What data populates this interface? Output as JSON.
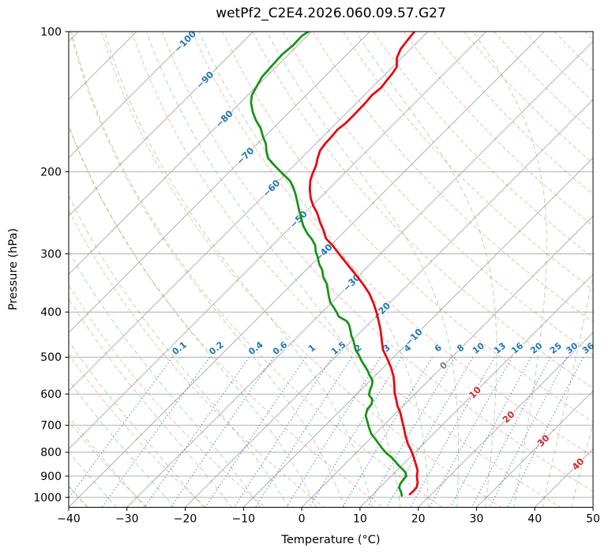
{
  "title": "wetPf2_C2E4.2026.060.09.57.G27",
  "chart_data": {
    "type": "line",
    "subtype": "skew-t-log-p-sounding",
    "title": "wetPf2_C2E4.2026.060.09.57.G27",
    "xlabel": "Temperature (°C)",
    "ylabel": "Pressure (hPa)",
    "x_ticks": [
      -40,
      -30,
      -20,
      -10,
      0,
      10,
      20,
      30,
      40,
      50
    ],
    "y_ticks": [
      100,
      200,
      300,
      400,
      500,
      600,
      700,
      800,
      900,
      1000
    ],
    "xlim_at_bottom": [
      -40,
      50
    ],
    "pressure_range": [
      100,
      1050
    ],
    "grid": true,
    "skew_deg": 45,
    "isotherms": {
      "t_start": -130,
      "t_end": 50,
      "step": 10,
      "line_color": "#b0b0b0",
      "labels": [
        {
          "t": -100,
          "p": 105
        },
        {
          "t": -90,
          "p": 127
        },
        {
          "t": -80,
          "p": 154
        },
        {
          "t": -70,
          "p": 185
        },
        {
          "t": -60,
          "p": 217
        },
        {
          "t": -50,
          "p": 253
        },
        {
          "t": -40,
          "p": 298
        },
        {
          "t": -30,
          "p": 346
        },
        {
          "t": -20,
          "p": 398
        },
        {
          "t": -10,
          "p": 453
        },
        {
          "t": 0,
          "p": 521
        },
        {
          "t": 10,
          "p": 595
        },
        {
          "t": 20,
          "p": 672
        },
        {
          "t": 30,
          "p": 755
        },
        {
          "t": 40,
          "p": 848
        }
      ],
      "label_color_negative": "#1f77b4",
      "label_color_zero": "#7f7f7f",
      "label_color_positive": "#d62728"
    },
    "dry_adiabats": {
      "theta_start_c": -40,
      "theta_end_c": 200,
      "step_c": 10,
      "color": "rgba(232,105,80,0.45)"
    },
    "moist_adiabats": {
      "t0_start_c": -40,
      "t0_end_c": 70,
      "step_c": 5,
      "color": "rgba(70,165,75,0.42)"
    },
    "mixing_ratio_lines": {
      "values_g_kg": [
        0.1,
        0.2,
        0.4,
        0.6,
        1,
        1.5,
        2,
        3,
        4,
        6,
        8,
        10,
        13,
        16,
        20,
        25,
        30,
        36
      ],
      "top_pressure": 500,
      "label_pressure": 478,
      "line_color": "rgba(36,118,189,0.75)",
      "label_color": "#1f77b4"
    },
    "series": [
      {
        "name": "temperature",
        "color": "#e8000b",
        "points_p_t": [
          [
            100,
            -62.3
          ],
          [
            102,
            -62.2
          ],
          [
            106,
            -61.9
          ],
          [
            109,
            -61.7
          ],
          [
            114,
            -60.8
          ],
          [
            119,
            -59.3
          ],
          [
            123,
            -58.9
          ],
          [
            127,
            -58.7
          ],
          [
            132,
            -58.4
          ],
          [
            137,
            -58.7
          ],
          [
            142,
            -58.5
          ],
          [
            152,
            -58.4
          ],
          [
            158,
            -58.4
          ],
          [
            162,
            -58.7
          ],
          [
            169,
            -58.5
          ],
          [
            174,
            -58.4
          ],
          [
            180,
            -58.1
          ],
          [
            187,
            -57.2
          ],
          [
            194,
            -56.2
          ],
          [
            202,
            -55.4
          ],
          [
            209,
            -54.6
          ],
          [
            218,
            -53.2
          ],
          [
            228,
            -51.5
          ],
          [
            237,
            -49.7
          ],
          [
            245,
            -47.9
          ],
          [
            256,
            -45.9
          ],
          [
            266,
            -44.0
          ],
          [
            278,
            -42.0
          ],
          [
            289,
            -39.4
          ],
          [
            304,
            -36.3
          ],
          [
            320,
            -33.1
          ],
          [
            335,
            -30.2
          ],
          [
            349,
            -27.7
          ],
          [
            365,
            -25.1
          ],
          [
            383,
            -22.7
          ],
          [
            400,
            -20.7
          ],
          [
            417,
            -18.9
          ],
          [
            435,
            -17.1
          ],
          [
            458,
            -15.1
          ],
          [
            482,
            -13.1
          ],
          [
            505,
            -10.7
          ],
          [
            527,
            -8.6
          ],
          [
            550,
            -6.7
          ],
          [
            572,
            -5.2
          ],
          [
            595,
            -3.8
          ],
          [
            616,
            -2.3
          ],
          [
            636,
            -1.0
          ],
          [
            658,
            0.7
          ],
          [
            685,
            2.4
          ],
          [
            709,
            3.9
          ],
          [
            735,
            5.4
          ],
          [
            767,
            7.3
          ],
          [
            794,
            9.1
          ],
          [
            823,
            10.8
          ],
          [
            849,
            12.2
          ],
          [
            876,
            13.6
          ],
          [
            900,
            14.4
          ],
          [
            928,
            15.6
          ],
          [
            951,
            16.3
          ],
          [
            969,
            16.4
          ],
          [
            984,
            16.3
          ]
        ]
      },
      {
        "name": "dewpoint",
        "color": "#149314",
        "points_p_t": [
          [
            100,
            -80.5
          ],
          [
            102,
            -80.9
          ],
          [
            107,
            -80.8
          ],
          [
            112,
            -81.1
          ],
          [
            119,
            -80.9
          ],
          [
            125,
            -80.7
          ],
          [
            131,
            -80.0
          ],
          [
            137,
            -79.3
          ],
          [
            142,
            -78.2
          ],
          [
            149,
            -76.2
          ],
          [
            155,
            -74.3
          ],
          [
            161,
            -72.2
          ],
          [
            168,
            -70.3
          ],
          [
            174,
            -68.6
          ],
          [
            181,
            -67.1
          ],
          [
            187,
            -65.7
          ],
          [
            192,
            -64.0
          ],
          [
            198,
            -61.9
          ],
          [
            204,
            -59.8
          ],
          [
            209,
            -58.1
          ],
          [
            215,
            -56.6
          ],
          [
            223,
            -54.9
          ],
          [
            232,
            -53.2
          ],
          [
            241,
            -51.6
          ],
          [
            251,
            -49.8
          ],
          [
            261,
            -48.1
          ],
          [
            272,
            -45.9
          ],
          [
            279,
            -44.3
          ],
          [
            288,
            -42.6
          ],
          [
            296,
            -41.6
          ],
          [
            305,
            -40.2
          ],
          [
            316,
            -38.7
          ],
          [
            325,
            -37.2
          ],
          [
            336,
            -35.9
          ],
          [
            347,
            -34.2
          ],
          [
            358,
            -32.9
          ],
          [
            369,
            -31.7
          ],
          [
            382,
            -30.2
          ],
          [
            391,
            -28.8
          ],
          [
            401,
            -27.4
          ],
          [
            409,
            -26.4
          ],
          [
            418,
            -24.3
          ],
          [
            426,
            -23.2
          ],
          [
            438,
            -22.0
          ],
          [
            450,
            -20.9
          ],
          [
            460,
            -19.8
          ],
          [
            473,
            -18.6
          ],
          [
            482,
            -17.8
          ],
          [
            495,
            -16.3
          ],
          [
            507,
            -15.1
          ],
          [
            520,
            -13.7
          ],
          [
            534,
            -12.2
          ],
          [
            547,
            -11.0
          ],
          [
            560,
            -9.7
          ],
          [
            572,
            -9.0
          ],
          [
            588,
            -8.4
          ],
          [
            602,
            -7.8
          ],
          [
            616,
            -6.4
          ],
          [
            631,
            -5.7
          ],
          [
            646,
            -5.6
          ],
          [
            667,
            -4.8
          ],
          [
            685,
            -3.6
          ],
          [
            707,
            -2.2
          ],
          [
            730,
            -0.7
          ],
          [
            748,
            0.8
          ],
          [
            767,
            2.3
          ],
          [
            786,
            3.8
          ],
          [
            802,
            5.1
          ],
          [
            820,
            6.8
          ],
          [
            836,
            8.1
          ],
          [
            852,
            9.3
          ],
          [
            868,
            10.6
          ],
          [
            882,
            11.7
          ],
          [
            900,
            12.6
          ],
          [
            918,
            12.7
          ],
          [
            936,
            12.9
          ],
          [
            954,
            13.4
          ],
          [
            973,
            14.4
          ],
          [
            992,
            15.2
          ]
        ]
      }
    ]
  }
}
